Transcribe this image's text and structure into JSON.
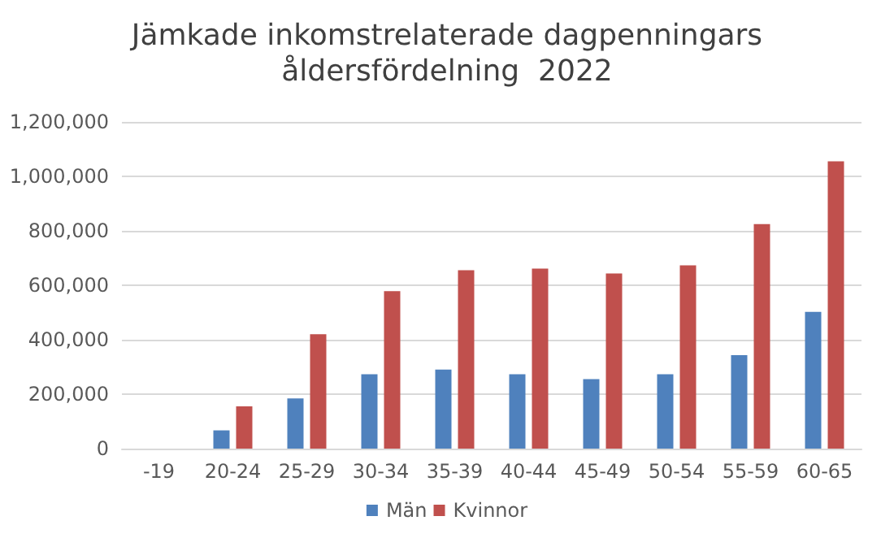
{
  "chart_data": {
    "type": "bar",
    "title": "Jämkade inkomstrelaterade dagpenningars\nåldersfördelning  2022",
    "categories": [
      "-19",
      "20-24",
      "25-29",
      "30-34",
      "35-39",
      "40-44",
      "45-49",
      "50-54",
      "55-59",
      "60-65"
    ],
    "series": [
      {
        "name": "Män",
        "color": "#4f81bd",
        "values": [
          0,
          67000,
          184000,
          273000,
          290000,
          273000,
          255000,
          273000,
          343000,
          502000
        ]
      },
      {
        "name": "Kvinnor",
        "color": "#c0504d",
        "values": [
          0,
          155000,
          420000,
          578000,
          655000,
          661000,
          643000,
          673000,
          825000,
          1055000
        ]
      }
    ],
    "ylim": [
      0,
      1200000
    ],
    "yticks": [
      0,
      {
        "value": 200000,
        "label": "200,000"
      },
      {
        "value": 400000,
        "label": "400,000"
      },
      {
        "value": 600000,
        "label": "600,000"
      },
      {
        "value": 800000,
        "label": "800,000"
      },
      {
        "value": 1000000,
        "label": "1,000,000"
      },
      {
        "value": 1200000,
        "label": "1,200,000"
      }
    ],
    "grid": "y",
    "legend": "bottom"
  }
}
